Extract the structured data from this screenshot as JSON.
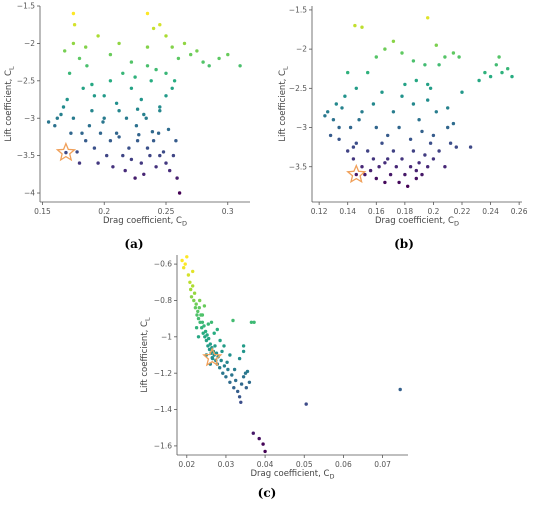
{
  "chart_data": [
    {
      "type": "scatter",
      "panel_label": "(a)",
      "xlabel": "Drag coefficient, C",
      "xlabel_sub": "D",
      "ylabel": "Lift coefficient, C",
      "ylabel_sub": "L",
      "xlim": [
        0.148,
        0.318
      ],
      "ylim": [
        -4.12,
        -1.5
      ],
      "xticks": [
        0.15,
        0.2,
        0.25,
        0.3
      ],
      "xtick_labels": [
        "0.15",
        "0.2",
        "0.25",
        "0.3"
      ],
      "yticks": [
        -4,
        -3.5,
        -3,
        -2.5,
        -2,
        -1.5
      ],
      "ytick_labels": [
        "−4",
        "−3.5",
        "−3",
        "−2.5",
        "−2",
        "−1.5"
      ],
      "grid": false,
      "colormap": "viridis",
      "color_range": [
        -4,
        -1.6
      ],
      "star": {
        "x": 0.169,
        "y": -3.46
      },
      "colors": {
        "star_stroke": "#f0a05a"
      },
      "points": [
        [
          0.162,
          -3.0
        ],
        [
          0.165,
          -2.95
        ],
        [
          0.167,
          -2.85
        ],
        [
          0.17,
          -2.75
        ],
        [
          0.175,
          -3.0
        ],
        [
          0.173,
          -3.2
        ],
        [
          0.178,
          -3.45
        ],
        [
          0.18,
          -3.6
        ],
        [
          0.182,
          -3.2
        ],
        [
          0.185,
          -3.3
        ],
        [
          0.188,
          -3.1
        ],
        [
          0.19,
          -2.9
        ],
        [
          0.192,
          -3.4
        ],
        [
          0.195,
          -3.6
        ],
        [
          0.197,
          -3.2
        ],
        [
          0.2,
          -3.0
        ],
        [
          0.202,
          -3.5
        ],
        [
          0.205,
          -3.3
        ],
        [
          0.207,
          -3.65
        ],
        [
          0.21,
          -3.2
        ],
        [
          0.212,
          -2.9
        ],
        [
          0.215,
          -3.5
        ],
        [
          0.217,
          -3.7
        ],
        [
          0.22,
          -3.4
        ],
        [
          0.222,
          -3.55
        ],
        [
          0.225,
          -3.8
        ],
        [
          0.227,
          -3.3
        ],
        [
          0.23,
          -3.6
        ],
        [
          0.232,
          -3.75
        ],
        [
          0.235,
          -3.4
        ],
        [
          0.237,
          -3.5
        ],
        [
          0.24,
          -3.3
        ],
        [
          0.242,
          -3.65
        ],
        [
          0.245,
          -3.5
        ],
        [
          0.248,
          -3.45
        ],
        [
          0.25,
          -3.6
        ],
        [
          0.253,
          -3.7
        ],
        [
          0.256,
          -3.5
        ],
        [
          0.259,
          -3.8
        ],
        [
          0.261,
          -4.0
        ],
        [
          0.218,
          -3.0
        ],
        [
          0.226,
          -3.1
        ],
        [
          0.234,
          -3.0
        ],
        [
          0.244,
          -3.2
        ],
        [
          0.252,
          -3.15
        ],
        [
          0.258,
          -3.3
        ],
        [
          0.212,
          -3.25
        ],
        [
          0.228,
          -3.22
        ],
        [
          0.239,
          -3.18
        ],
        [
          0.222,
          -2.6
        ],
        [
          0.23,
          -2.75
        ],
        [
          0.238,
          -2.5
        ],
        [
          0.245,
          -2.85
        ],
        [
          0.25,
          -2.7
        ],
        [
          0.255,
          -2.6
        ],
        [
          0.245,
          -2.9
        ],
        [
          0.232,
          -2.95
        ],
        [
          0.21,
          -2.8
        ],
        [
          0.2,
          -2.7
        ],
        [
          0.19,
          -2.55
        ],
        [
          0.205,
          -2.5
        ],
        [
          0.215,
          -2.4
        ],
        [
          0.225,
          -2.45
        ],
        [
          0.235,
          -2.3
        ],
        [
          0.242,
          -2.35
        ],
        [
          0.25,
          -2.4
        ],
        [
          0.257,
          -2.5
        ],
        [
          0.186,
          -2.3
        ],
        [
          0.18,
          -2.2
        ],
        [
          0.172,
          -2.4
        ],
        [
          0.168,
          -2.1
        ],
        [
          0.175,
          -2.0
        ],
        [
          0.185,
          -2.05
        ],
        [
          0.195,
          -1.9
        ],
        [
          0.205,
          -2.15
        ],
        [
          0.212,
          -2.0
        ],
        [
          0.222,
          -2.25
        ],
        [
          0.235,
          -2.05
        ],
        [
          0.24,
          -1.8
        ],
        [
          0.235,
          -1.6
        ],
        [
          0.245,
          -1.75
        ],
        [
          0.25,
          -1.9
        ],
        [
          0.255,
          -2.05
        ],
        [
          0.26,
          -2.2
        ],
        [
          0.265,
          -2.0
        ],
        [
          0.27,
          -2.15
        ],
        [
          0.275,
          -2.1
        ],
        [
          0.28,
          -2.25
        ],
        [
          0.285,
          -2.3
        ],
        [
          0.293,
          -2.2
        ],
        [
          0.3,
          -2.15
        ],
        [
          0.31,
          -2.3
        ],
        [
          0.175,
          -1.6
        ],
        [
          0.176,
          -1.75
        ],
        [
          0.155,
          -3.05
        ],
        [
          0.16,
          -3.1
        ],
        [
          0.183,
          -2.6
        ],
        [
          0.192,
          -2.7
        ],
        [
          0.199,
          -3.05
        ],
        [
          0.227,
          -2.88
        ]
      ]
    },
    {
      "type": "scatter",
      "panel_label": "(b)",
      "xlabel": "Drag coefficient, C",
      "xlabel_sub": "D",
      "ylabel": "Lift coefficient, C",
      "ylabel_sub": "L",
      "xlim": [
        0.115,
        0.262
      ],
      "ylim": [
        -3.95,
        -1.45
      ],
      "xticks": [
        0.12,
        0.14,
        0.16,
        0.18,
        0.2,
        0.22,
        0.24,
        0.26
      ],
      "xtick_labels": [
        "0.12",
        "0.14",
        "0.16",
        "0.18",
        "0.2",
        "0.22",
        "0.24",
        "0.26"
      ],
      "yticks": [
        -3.5,
        -3,
        -2.5,
        -2,
        -1.5
      ],
      "ytick_labels": [
        "−3.5",
        "−3",
        "−2.5",
        "−2",
        "−1.5"
      ],
      "grid": false,
      "colormap": "viridis",
      "color_range": [
        -3.75,
        -1.5
      ],
      "star": {
        "x": 0.146,
        "y": -3.6
      },
      "colors": {
        "star_stroke": "#f0a05a"
      },
      "points": [
        [
          0.126,
          -2.8
        ],
        [
          0.128,
          -3.1
        ],
        [
          0.13,
          -2.9
        ],
        [
          0.132,
          -2.7
        ],
        [
          0.134,
          -3.0
        ],
        [
          0.136,
          -2.75
        ],
        [
          0.138,
          -2.6
        ],
        [
          0.14,
          -3.3
        ],
        [
          0.142,
          -3.0
        ],
        [
          0.144,
          -3.4
        ],
        [
          0.146,
          -3.2
        ],
        [
          0.148,
          -2.9
        ],
        [
          0.15,
          -3.5
        ],
        [
          0.152,
          -3.6
        ],
        [
          0.154,
          -3.3
        ],
        [
          0.156,
          -3.55
        ],
        [
          0.158,
          -3.4
        ],
        [
          0.16,
          -3.65
        ],
        [
          0.162,
          -3.5
        ],
        [
          0.164,
          -3.2
        ],
        [
          0.166,
          -3.7
        ],
        [
          0.168,
          -3.4
        ],
        [
          0.17,
          -3.6
        ],
        [
          0.172,
          -3.3
        ],
        [
          0.174,
          -3.5
        ],
        [
          0.176,
          -3.7
        ],
        [
          0.178,
          -3.4
        ],
        [
          0.18,
          -3.6
        ],
        [
          0.182,
          -3.75
        ],
        [
          0.184,
          -3.5
        ],
        [
          0.186,
          -3.3
        ],
        [
          0.188,
          -3.55
        ],
        [
          0.19,
          -3.45
        ],
        [
          0.192,
          -3.6
        ],
        [
          0.194,
          -3.35
        ],
        [
          0.196,
          -3.5
        ],
        [
          0.198,
          -3.2
        ],
        [
          0.2,
          -3.4
        ],
        [
          0.204,
          -3.3
        ],
        [
          0.208,
          -3.5
        ],
        [
          0.212,
          -3.2
        ],
        [
          0.16,
          -3.0
        ],
        [
          0.168,
          -3.1
        ],
        [
          0.176,
          -3.0
        ],
        [
          0.184,
          -3.15
        ],
        [
          0.192,
          -3.05
        ],
        [
          0.2,
          -3.1
        ],
        [
          0.21,
          -3.0
        ],
        [
          0.216,
          -3.25
        ],
        [
          0.226,
          -3.25
        ],
        [
          0.15,
          -2.8
        ],
        [
          0.158,
          -2.7
        ],
        [
          0.164,
          -2.55
        ],
        [
          0.172,
          -2.8
        ],
        [
          0.178,
          -2.6
        ],
        [
          0.186,
          -2.7
        ],
        [
          0.19,
          -2.9
        ],
        [
          0.196,
          -2.65
        ],
        [
          0.202,
          -2.8
        ],
        [
          0.21,
          -2.75
        ],
        [
          0.214,
          -2.95
        ],
        [
          0.18,
          -2.45
        ],
        [
          0.188,
          -2.4
        ],
        [
          0.196,
          -2.45
        ],
        [
          0.154,
          -2.3
        ],
        [
          0.146,
          -2.5
        ],
        [
          0.14,
          -2.3
        ],
        [
          0.16,
          -2.1
        ],
        [
          0.166,
          -2.0
        ],
        [
          0.172,
          -1.9
        ],
        [
          0.178,
          -2.05
        ],
        [
          0.186,
          -2.15
        ],
        [
          0.194,
          -2.2
        ],
        [
          0.198,
          -2.5
        ],
        [
          0.204,
          -2.2
        ],
        [
          0.208,
          -2.1
        ],
        [
          0.214,
          -2.05
        ],
        [
          0.218,
          -2.1
        ],
        [
          0.202,
          -1.95
        ],
        [
          0.196,
          -1.6
        ],
        [
          0.145,
          -1.7
        ],
        [
          0.15,
          -1.72
        ],
        [
          0.232,
          -2.4
        ],
        [
          0.236,
          -2.3
        ],
        [
          0.24,
          -2.35
        ],
        [
          0.244,
          -2.2
        ],
        [
          0.248,
          -2.3
        ],
        [
          0.252,
          -2.25
        ],
        [
          0.255,
          -2.35
        ],
        [
          0.246,
          -2.1
        ],
        [
          0.22,
          -2.55
        ],
        [
          0.124,
          -2.85
        ],
        [
          0.134,
          -3.15
        ],
        [
          0.144,
          -3.25
        ],
        [
          0.188,
          -3.65
        ],
        [
          0.166,
          -3.45
        ]
      ]
    },
    {
      "type": "scatter",
      "panel_label": "(c)",
      "xlabel": "Drag coefficient, C",
      "xlabel_sub": "D",
      "ylabel": "Lift coefficient, C",
      "ylabel_sub": "L",
      "xlim": [
        0.0175,
        0.0765
      ],
      "ylim": [
        -1.65,
        -0.55
      ],
      "xticks": [
        0.02,
        0.03,
        0.04,
        0.05,
        0.06,
        0.07
      ],
      "xtick_labels": [
        "0.02",
        "0.03",
        "0.04",
        "0.05",
        "0.06",
        "0.07"
      ],
      "yticks": [
        -1.6,
        -1.4,
        -1.2,
        -1,
        -0.8,
        -0.6
      ],
      "ytick_labels": [
        "−1.6",
        "−1.4",
        "−1.2",
        "−1",
        "−0.8",
        "−0.6"
      ],
      "grid": false,
      "colormap": "viridis",
      "color_range": [
        -1.6,
        -0.6
      ],
      "star": {
        "x": 0.0265,
        "y": -1.115
      },
      "colors": {
        "star_stroke": "#f0a05a"
      },
      "points": [
        [
          0.0188,
          -0.58
        ],
        [
          0.0192,
          -0.62
        ],
        [
          0.0196,
          -0.6
        ],
        [
          0.02,
          -0.56
        ],
        [
          0.0204,
          -0.66
        ],
        [
          0.0208,
          -0.7
        ],
        [
          0.021,
          -0.74
        ],
        [
          0.0212,
          -0.78
        ],
        [
          0.0215,
          -0.72
        ],
        [
          0.0218,
          -0.8
        ],
        [
          0.022,
          -0.76
        ],
        [
          0.0222,
          -0.84
        ],
        [
          0.0224,
          -0.82
        ],
        [
          0.0226,
          -0.88
        ],
        [
          0.0228,
          -0.86
        ],
        [
          0.023,
          -0.9
        ],
        [
          0.0232,
          -0.84
        ],
        [
          0.0234,
          -0.92
        ],
        [
          0.0236,
          -0.88
        ],
        [
          0.0238,
          -0.95
        ],
        [
          0.024,
          -0.92
        ],
        [
          0.0242,
          -0.98
        ],
        [
          0.0244,
          -0.94
        ],
        [
          0.0246,
          -1.0
        ],
        [
          0.0248,
          -0.97
        ],
        [
          0.025,
          -1.02
        ],
        [
          0.0252,
          -0.99
        ],
        [
          0.0254,
          -1.05
        ],
        [
          0.0256,
          -1.01
        ],
        [
          0.0258,
          -1.07
        ],
        [
          0.026,
          -1.04
        ],
        [
          0.0262,
          -1.09
        ],
        [
          0.0264,
          -1.06
        ],
        [
          0.0266,
          -1.12
        ],
        [
          0.0268,
          -1.08
        ],
        [
          0.027,
          -1.1
        ],
        [
          0.0272,
          -1.05
        ],
        [
          0.0274,
          -1.13
        ],
        [
          0.0276,
          -1.09
        ],
        [
          0.0278,
          -1.15
        ],
        [
          0.028,
          -1.11
        ],
        [
          0.0284,
          -1.17
        ],
        [
          0.0288,
          -1.13
        ],
        [
          0.0292,
          -1.2
        ],
        [
          0.0296,
          -1.16
        ],
        [
          0.03,
          -1.22
        ],
        [
          0.0305,
          -1.18
        ],
        [
          0.031,
          -1.25
        ],
        [
          0.0315,
          -1.21
        ],
        [
          0.032,
          -1.28
        ],
        [
          0.0325,
          -1.24
        ],
        [
          0.033,
          -1.3
        ],
        [
          0.0335,
          -1.33
        ],
        [
          0.0338,
          -1.36
        ],
        [
          0.0345,
          -1.22
        ],
        [
          0.035,
          -1.2
        ],
        [
          0.0355,
          -1.19
        ],
        [
          0.036,
          -1.25
        ],
        [
          0.024,
          -0.88
        ],
        [
          0.0255,
          -0.93
        ],
        [
          0.027,
          -0.98
        ],
        [
          0.0285,
          -1.02
        ],
        [
          0.0295,
          -1.05
        ],
        [
          0.031,
          -1.1
        ],
        [
          0.023,
          -1.0
        ],
        [
          0.0225,
          -0.95
        ],
        [
          0.025,
          -1.1
        ],
        [
          0.026,
          -1.15
        ],
        [
          0.0335,
          -1.12
        ],
        [
          0.0345,
          -1.05
        ],
        [
          0.0318,
          -0.91
        ],
        [
          0.0365,
          -0.92
        ],
        [
          0.0372,
          -0.92
        ],
        [
          0.0345,
          -1.08
        ],
        [
          0.037,
          -1.53
        ],
        [
          0.0385,
          -1.56
        ],
        [
          0.0395,
          -1.59
        ],
        [
          0.04,
          -1.63
        ],
        [
          0.0505,
          -1.37
        ],
        [
          0.0745,
          -1.29
        ],
        [
          0.0215,
          -0.64
        ],
        [
          0.0233,
          -0.8
        ],
        [
          0.0245,
          -0.83
        ],
        [
          0.0263,
          -0.92
        ],
        [
          0.0278,
          -0.96
        ],
        [
          0.029,
          -1.08
        ],
        [
          0.0303,
          -1.14
        ],
        [
          0.0322,
          -1.18
        ],
        [
          0.034,
          -1.26
        ],
        [
          0.0352,
          -1.28
        ]
      ]
    }
  ]
}
